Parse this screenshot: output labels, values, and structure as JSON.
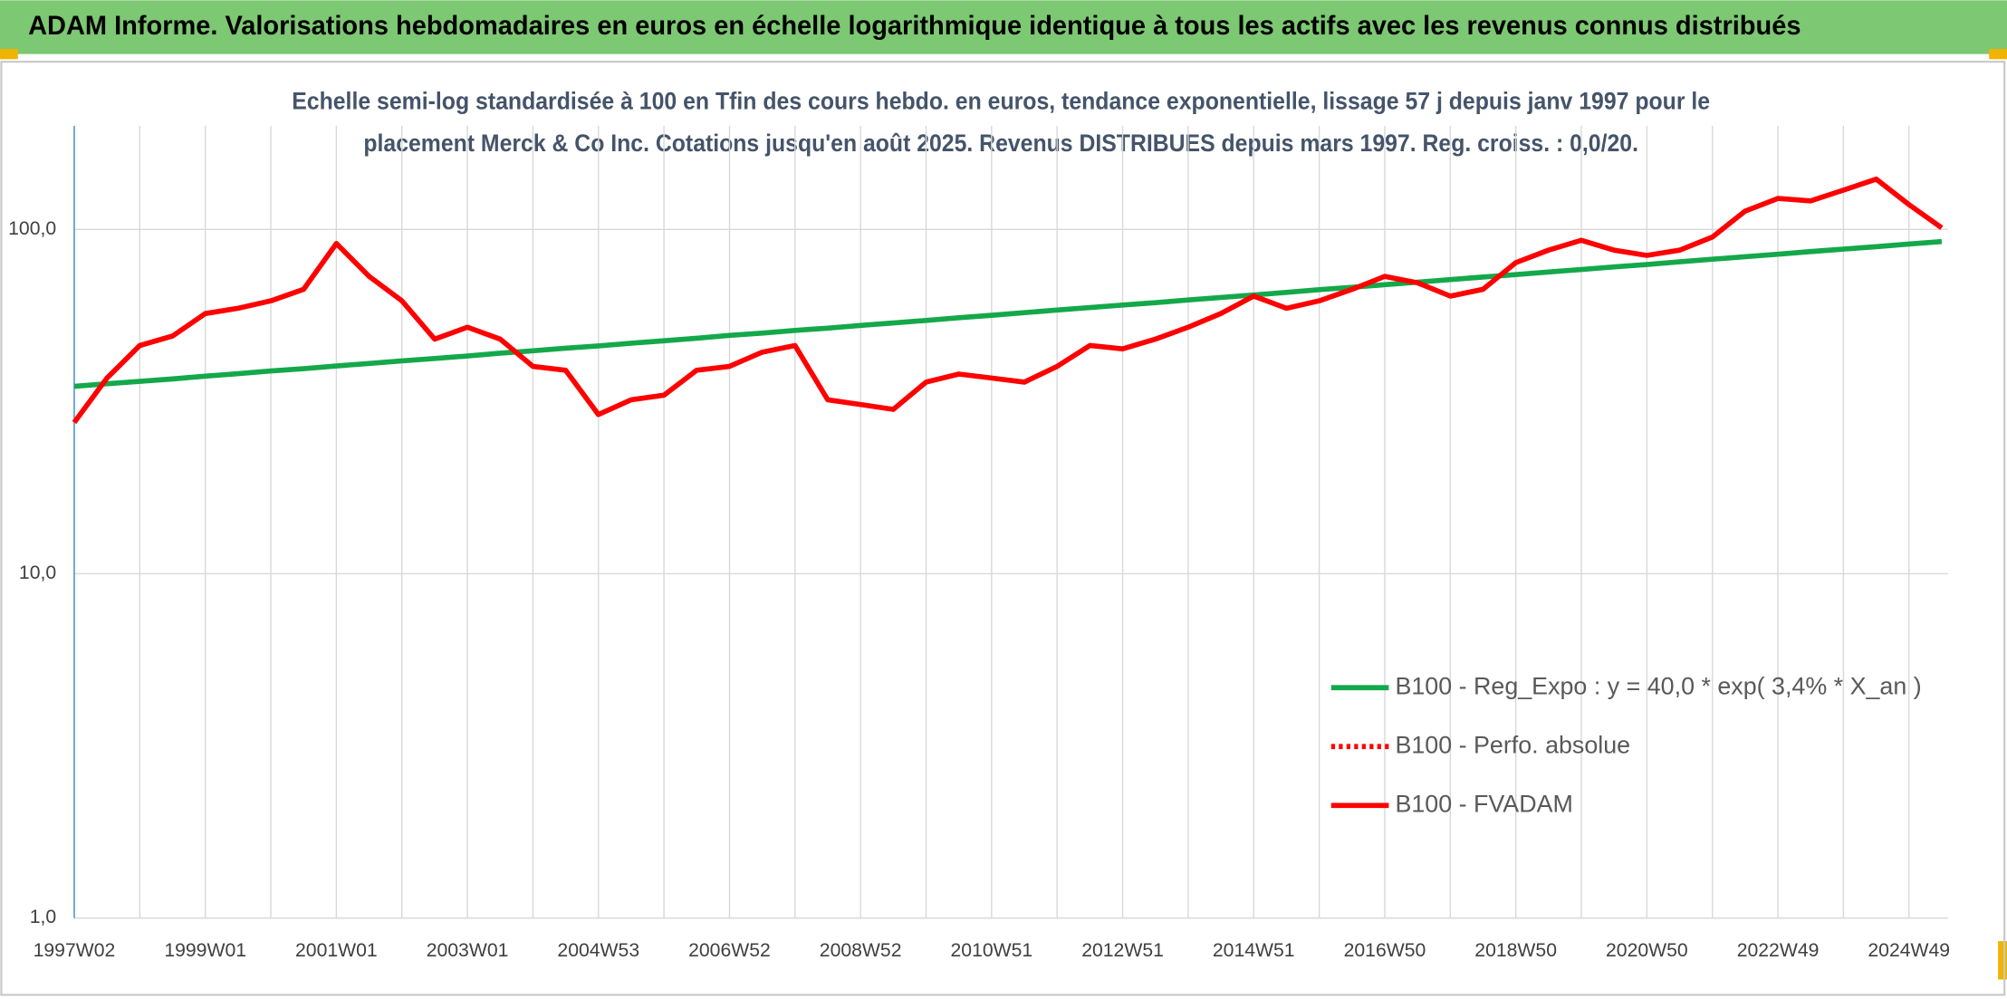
{
  "chart_data": {
    "type": "line",
    "title": "ADAM Informe. Valorisations hebdomadaires en euros en échelle logarithmique identique à tous les actifs avec les revenus connus distribués",
    "subtitle": [
      "Echelle semi-log standardisée à 100 en Tfin des cours hebdo. en euros, tendance exponentielle, lissage 57 j depuis janv 1997 pour le",
      "placement Merck & Co Inc. Cotations jusqu'en août 2025. Revenus DISTRIBUES depuis mars 1997. Reg. croiss. : 0,0/20."
    ],
    "log_scale": true,
    "grid": true,
    "legend": "lower-right",
    "ylim": [
      1,
      200
    ],
    "yticks": [
      {
        "value": 1,
        "label": "1,0"
      },
      {
        "value": 10,
        "label": "10,0"
      },
      {
        "value": 100,
        "label": "100,0"
      }
    ],
    "categories": [
      "1997W02",
      null,
      null,
      null,
      "1999W01",
      null,
      null,
      null,
      "2001W01",
      null,
      null,
      null,
      "2003W01",
      null,
      null,
      null,
      "2004W53",
      null,
      null,
      null,
      "2006W52",
      null,
      null,
      null,
      "2008W52",
      null,
      null,
      null,
      "2010W51",
      null,
      null,
      null,
      "2012W51",
      null,
      null,
      null,
      "2014W51",
      null,
      null,
      null,
      "2016W50",
      null,
      null,
      null,
      "2018W50",
      null,
      null,
      null,
      "2020W50",
      null,
      null,
      null,
      "2022W49",
      null,
      null,
      null,
      "2024W49",
      null
    ],
    "series": [
      {
        "name": "B100 - Reg_Expo : y = 40,0 * exp( 3,4% *  X_an )",
        "color": "#14a84a",
        "style": "solid",
        "values": [
          35.0,
          35.6,
          36.2,
          36.8,
          37.5,
          38.1,
          38.8,
          39.4,
          40.1,
          40.8,
          41.5,
          42.2,
          42.9,
          43.7,
          44.4,
          45.2,
          45.9,
          46.7,
          47.5,
          48.3,
          49.2,
          50.0,
          50.9,
          51.7,
          52.6,
          53.5,
          54.4,
          55.4,
          56.3,
          57.3,
          58.3,
          59.3,
          60.3,
          61.3,
          62.4,
          63.4,
          64.5,
          65.6,
          66.8,
          67.9,
          69.1,
          70.3,
          71.5,
          72.7,
          73.9,
          75.2,
          76.5,
          77.8,
          79.1,
          80.5,
          81.9,
          83.3,
          84.7,
          86.2,
          87.6,
          89.1,
          90.7,
          92.2
        ]
      },
      {
        "name": "B100 - Perfo. absolue",
        "color": "#ff0000",
        "style": "dotted",
        "values": [
          null,
          null,
          null,
          null,
          null,
          null,
          null,
          null,
          null,
          null,
          null,
          null,
          null,
          null,
          null,
          null,
          null,
          null,
          null,
          null,
          null,
          null,
          null,
          null,
          null,
          null,
          null,
          null,
          null,
          null,
          null,
          null,
          null,
          null,
          null,
          null,
          null,
          null,
          null,
          null,
          null,
          null,
          null,
          null,
          null,
          null,
          null,
          null,
          null,
          null,
          null,
          null,
          null,
          null,
          null,
          null,
          null,
          null
        ]
      },
      {
        "name": "B100 - FVADAM",
        "color": "#ff0000",
        "style": "solid",
        "values": [
          27.5,
          37,
          46,
          49,
          57,
          59,
          62,
          67,
          91,
          73,
          62,
          48,
          52,
          48,
          40,
          39,
          29,
          32,
          33,
          39,
          40,
          44,
          46,
          32,
          31,
          30,
          36,
          38,
          37,
          36,
          40,
          46,
          45,
          48,
          52,
          57,
          64,
          59,
          62,
          67,
          73,
          70,
          64,
          67,
          80,
          87,
          93,
          87,
          84,
          87,
          95,
          113,
          123,
          121,
          130,
          140,
          118,
          101
        ]
      }
    ]
  }
}
